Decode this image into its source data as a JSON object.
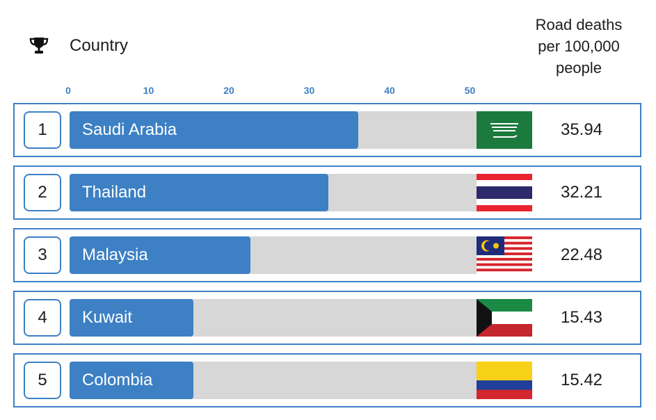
{
  "header": {
    "trophy_icon": "trophy-icon",
    "country_label": "Country",
    "metric_label_lines": [
      "Road deaths",
      "per 100,000",
      "people"
    ]
  },
  "colors": {
    "accent": "#3d80c4",
    "track": "#d7d7d7"
  },
  "chart_data": {
    "type": "bar",
    "orientation": "horizontal",
    "xlim": [
      0,
      55
    ],
    "ticks": [
      0,
      10,
      20,
      30,
      40,
      50
    ],
    "categories": [
      "Saudi Arabia",
      "Thailand",
      "Malaysia",
      "Kuwait",
      "Colombia"
    ],
    "values": [
      35.94,
      32.21,
      22.48,
      15.43,
      15.42
    ],
    "value_labels": [
      "35.94",
      "32.21",
      "22.48",
      "15.43",
      "15.42"
    ],
    "ranks": [
      "1",
      "2",
      "3",
      "4",
      "5"
    ],
    "flags": [
      "saudi-arabia-flag",
      "thailand-flag",
      "malaysia-flag",
      "kuwait-flag",
      "colombia-flag"
    ],
    "grid": false,
    "legend": "none"
  }
}
